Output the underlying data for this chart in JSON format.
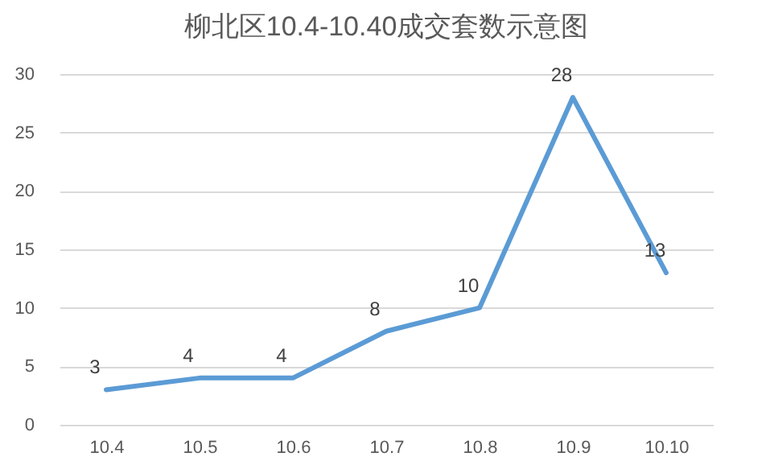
{
  "chart_data": {
    "type": "line",
    "title": "柳北区10.4-10.40成交套数示意图",
    "categories": [
      "10.4",
      "10.5",
      "10.6",
      "10.7",
      "10.8",
      "10.9",
      "10.10"
    ],
    "series": [
      {
        "color": "#5b9bd5",
        "values": [
          3,
          4,
          4,
          8,
          10,
          28,
          13
        ]
      }
    ],
    "ylim": [
      0,
      30
    ],
    "yticks": [
      0,
      5,
      10,
      15,
      20,
      25,
      30
    ],
    "grid": "y",
    "data_labels": true,
    "legend": false,
    "marker": "none",
    "line_style": "solid"
  }
}
